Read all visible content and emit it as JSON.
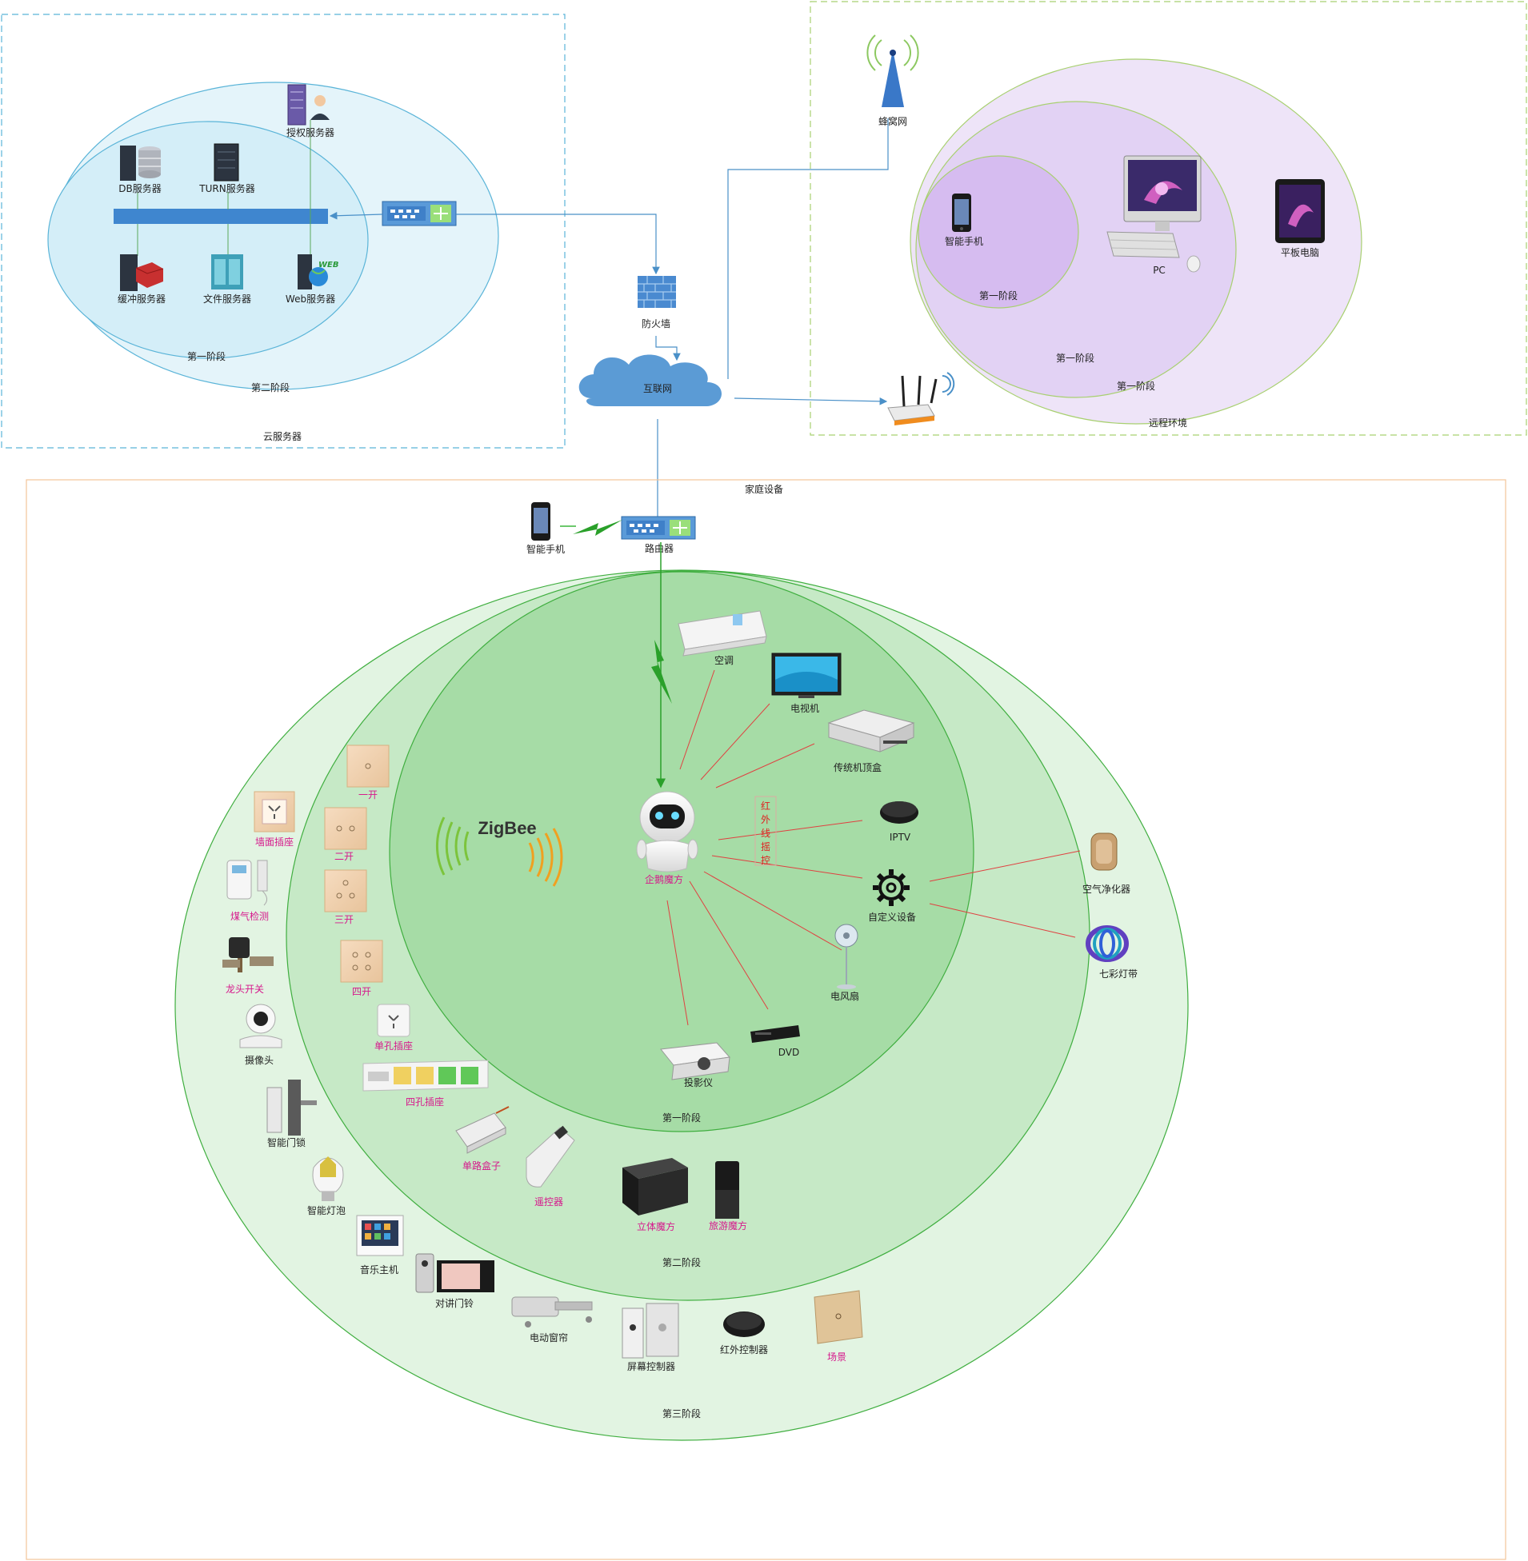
{
  "regions": {
    "cloud": "云服务器",
    "remote": "远程环境",
    "home": "家庭设备"
  },
  "stages": {
    "stage1": "第一阶段",
    "stage2": "第二阶段",
    "stage3": "第三阶段"
  },
  "cloud_nodes": {
    "auth_server": "授权服务器",
    "db_server": "DB服务器",
    "turn_server": "TURN服务器",
    "cache_server": "缓冲服务器",
    "file_server": "文件服务器",
    "web_server": "Web服务器"
  },
  "network": {
    "firewall": "防火墙",
    "internet": "互联网",
    "cellular": "蜂窝网",
    "router": "路由器"
  },
  "remote_nodes": {
    "phone": "智能手机",
    "pc": "PC",
    "tablet": "平板电脑"
  },
  "home_nodes": {
    "phone": "智能手机",
    "ac": "空调",
    "tv": "电视机",
    "stb": "传统机顶盒",
    "iptv": "IPTV",
    "ir_label": "红外线摇控",
    "hub": "企鹅魔方",
    "custom": "自定义设备",
    "fan": "电风扇",
    "dvd": "DVD",
    "projector": "投影仪",
    "air_purifier": "空气净化器",
    "light_strip": "七彩灯带",
    "zigbee": "ZigBee",
    "switch1": "一开",
    "switch2": "二开",
    "switch3": "三开",
    "switch4": "四开",
    "single_socket": "单孔插座",
    "quad_socket": "四孔插座",
    "relay_box": "单路盒子",
    "remote_ctrl": "遥控器",
    "cube_3d": "立体魔方",
    "travel_cube": "旅游魔方",
    "wall_socket": "墙面插座",
    "gas_detector": "煤气检测",
    "valve_switch": "龙头开关",
    "camera": "摄像头",
    "door_lock": "智能门锁",
    "smart_bulb": "智能灯泡",
    "music_host": "音乐主机",
    "intercom": "对讲门铃",
    "curtain": "电动窗帘",
    "screen_ctrl": "屏幕控制器",
    "ir_controller": "红外控制器",
    "scene": "场景"
  },
  "colors": {
    "cloud_border": "#5ab4d8",
    "cloud_fill": "#e4f4fa",
    "remote_border": "#a8d070",
    "remote_fill": "#eee4f8",
    "home_border": "#f2c49a",
    "green_outer": "#e2f4e2",
    "green_mid": "#c6e9c6",
    "green_inner": "#a6dca6",
    "ir_line": "#e04040",
    "link_line": "#4a90c8"
  }
}
